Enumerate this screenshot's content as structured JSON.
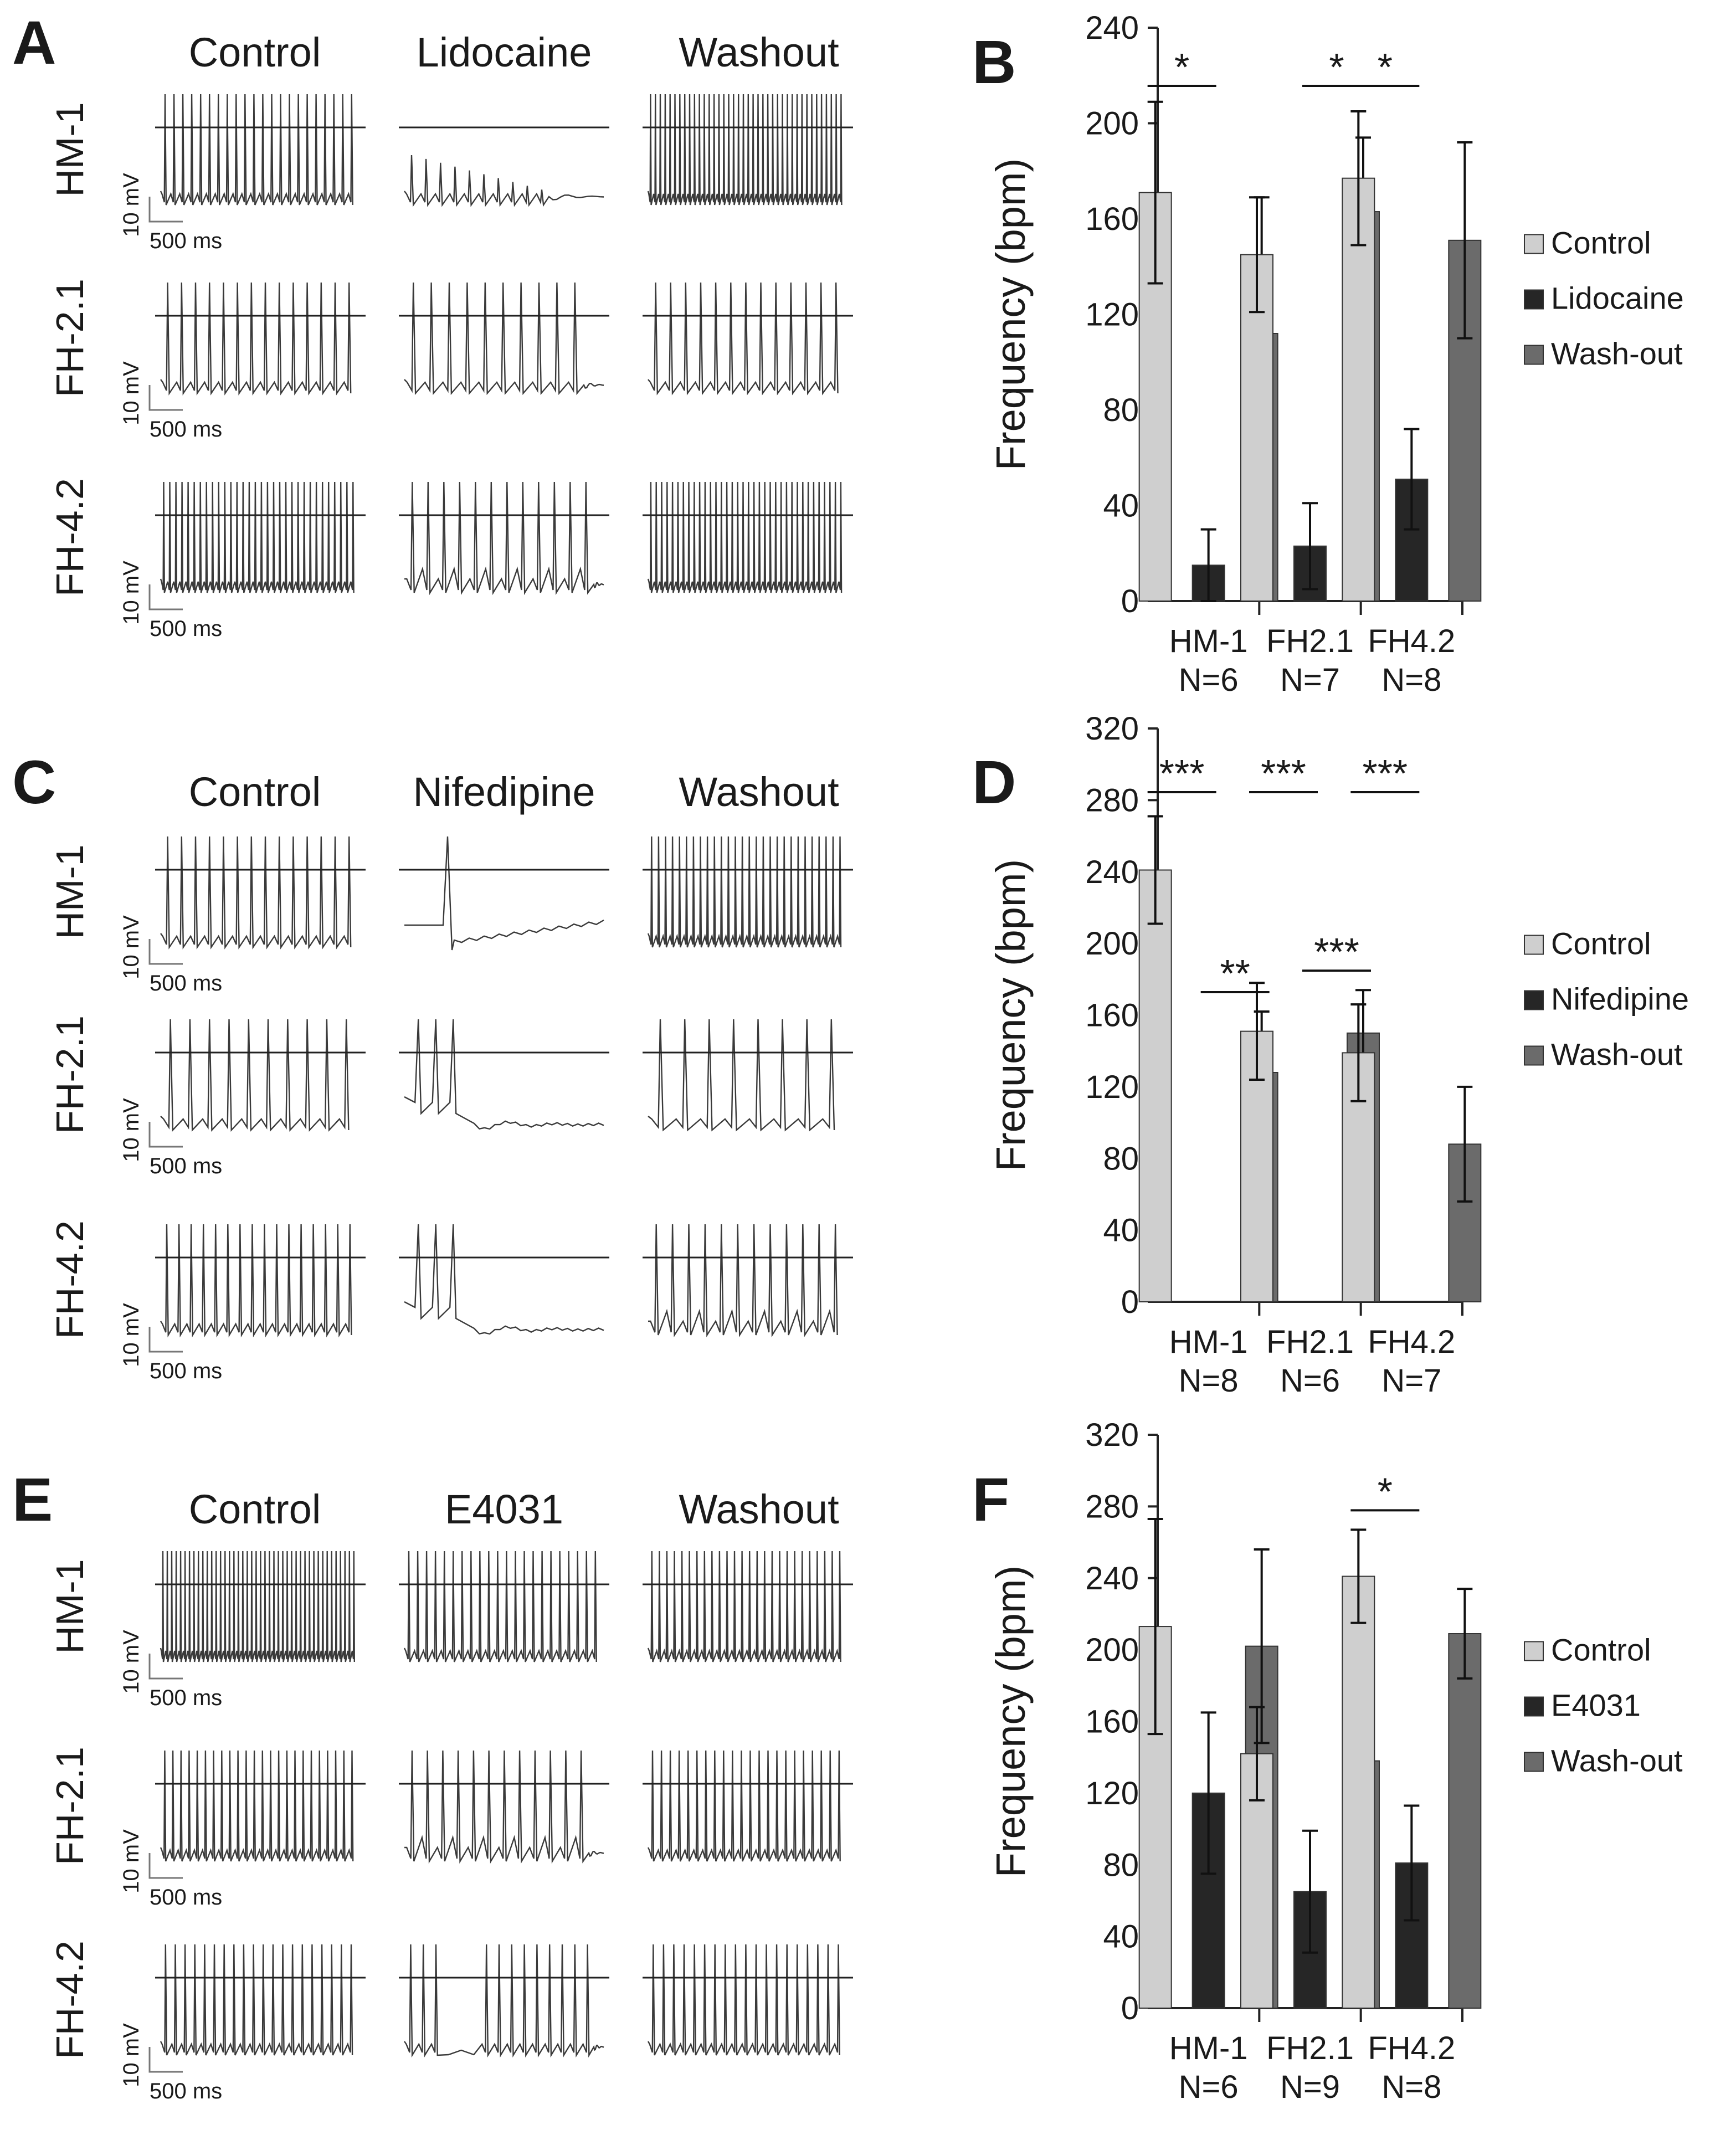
{
  "figure": {
    "colors": {
      "control": "#cfcfcf",
      "drug": "#262626",
      "washout": "#6b6b6b",
      "trace": "#3a3a3a"
    },
    "trace_panels": [
      {
        "letter": "A",
        "conditions": [
          "Control",
          "Lidocaine",
          "Washout"
        ],
        "rows": [
          {
            "label": "HM-1",
            "scale_mv": "10 mV",
            "scale_ms": "500 ms"
          },
          {
            "label": "FH-2.1",
            "scale_mv": "10 mV",
            "scale_ms": "500 ms"
          },
          {
            "label": "FH-4.2",
            "scale_mv": "10 mV",
            "scale_ms": "500 ms"
          }
        ]
      },
      {
        "letter": "C",
        "conditions": [
          "Control",
          "Nifedipine",
          "Washout"
        ],
        "rows": [
          {
            "label": "HM-1",
            "scale_mv": "10 mV",
            "scale_ms": "500 ms"
          },
          {
            "label": "FH-2.1",
            "scale_mv": "10 mV",
            "scale_ms": "500 ms"
          },
          {
            "label": "FH-4.2",
            "scale_mv": "10 mV",
            "scale_ms": "500 ms"
          }
        ]
      },
      {
        "letter": "E",
        "conditions": [
          "Control",
          "E4031",
          "Washout"
        ],
        "rows": [
          {
            "label": "HM-1",
            "scale_mv": "10 mV",
            "scale_ms": "500 ms"
          },
          {
            "label": "FH-2.1",
            "scale_mv": "10 mV",
            "scale_ms": "500 ms"
          },
          {
            "label": "FH-4.2",
            "scale_mv": "10 mV",
            "scale_ms": "500 ms"
          }
        ]
      }
    ]
  },
  "chart_data": [
    {
      "panel": "B",
      "type": "bar",
      "ylabel": "Frequency (bpm)",
      "ylim": [
        0,
        240
      ],
      "yticks": [
        0,
        40,
        80,
        120,
        160,
        200,
        240
      ],
      "categories": [
        "HM-1",
        "FH2.1",
        "FH4.2"
      ],
      "category_n": [
        "N=6",
        "N=7",
        "N=8"
      ],
      "series": [
        {
          "name": "Control",
          "values": [
            171,
            145,
            177
          ],
          "errors": [
            38,
            24,
            28
          ]
        },
        {
          "name": "Lidocaine",
          "values": [
            15,
            23,
            51
          ],
          "errors": [
            15,
            18,
            21
          ]
        },
        {
          "name": "Wash-out",
          "values": [
            112,
            163,
            151
          ],
          "errors": [
            57,
            31,
            41
          ]
        }
      ],
      "significance": [
        {
          "text": "*",
          "category": 0,
          "from": 0,
          "to": 1
        },
        {
          "text": "*",
          "category": 1,
          "from": 1,
          "to": 2
        },
        {
          "text": "*",
          "category": 2,
          "from": 0,
          "to": 1
        }
      ]
    },
    {
      "panel": "D",
      "type": "bar",
      "ylabel": "Frequency (bpm)",
      "ylim": [
        0,
        320
      ],
      "yticks": [
        0,
        40,
        80,
        120,
        160,
        200,
        240,
        280,
        320
      ],
      "categories": [
        "HM-1",
        "FH2.1",
        "FH4.2"
      ],
      "category_n": [
        "N=8",
        "N=6",
        "N=7"
      ],
      "series": [
        {
          "name": "Control",
          "values": [
            241,
            151,
            139
          ],
          "errors": [
            30,
            27,
            27
          ]
        },
        {
          "name": "Nifedipine",
          "values": [
            0,
            0,
            0
          ],
          "errors": [
            0,
            0,
            0
          ]
        },
        {
          "name": "Wash-out",
          "values": [
            128,
            150,
            88
          ],
          "errors": [
            34,
            24,
            32
          ]
        }
      ],
      "significance": [
        {
          "text": "***",
          "category": 0,
          "from": 0,
          "to": 1
        },
        {
          "text": "***",
          "category": 1,
          "from": 0,
          "to": 1
        },
        {
          "text": "***",
          "category": 2,
          "from": 0,
          "to": 1
        },
        {
          "text": "**",
          "category": 0,
          "from": 1,
          "to": 2
        },
        {
          "text": "***",
          "category": 1,
          "from": 1,
          "to": 2
        }
      ]
    },
    {
      "panel": "F",
      "type": "bar",
      "ylabel": "Frequency (bpm)",
      "ylim": [
        0,
        320
      ],
      "yticks": [
        0,
        40,
        80,
        120,
        160,
        200,
        240,
        280,
        320
      ],
      "categories": [
        "HM-1",
        "FH2.1",
        "FH4.2"
      ],
      "category_n": [
        "N=6",
        "N=9",
        "N=8"
      ],
      "series": [
        {
          "name": "Control",
          "values": [
            213,
            142,
            241
          ],
          "errors": [
            60,
            26,
            26
          ]
        },
        {
          "name": "E4031",
          "values": [
            120,
            65,
            81
          ],
          "errors": [
            45,
            34,
            32
          ]
        },
        {
          "name": "Wash-out",
          "values": [
            202,
            138,
            209
          ],
          "errors": [
            54,
            33,
            25
          ]
        }
      ],
      "significance": [
        {
          "text": "*",
          "category": 2,
          "from": 0,
          "to": 1
        }
      ]
    }
  ]
}
